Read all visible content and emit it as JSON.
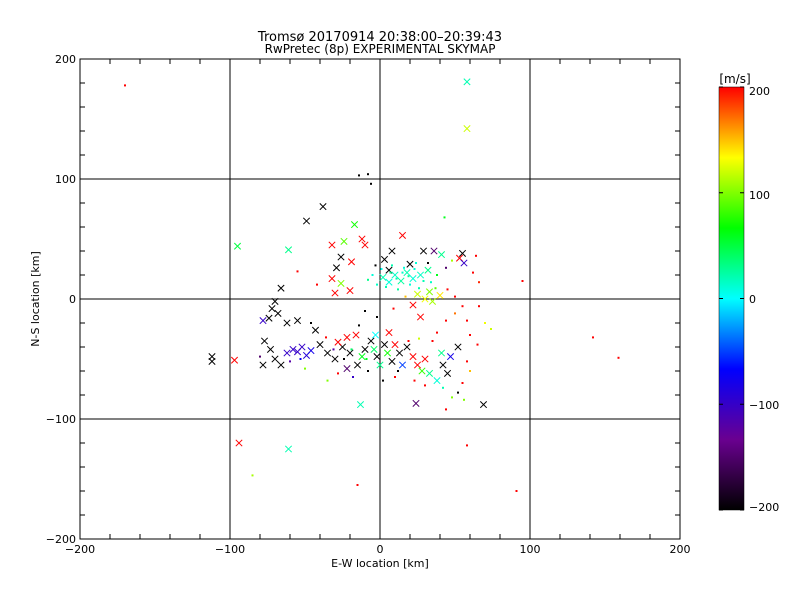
{
  "chart_data": {
    "type": "scatter",
    "title": "Tromsø 20170914 20:38:00–20:39:43",
    "subtitle": "RwPretec (8p) EXPERIMENTAL SKYMAP",
    "xlabel": "E-W location [km]",
    "ylabel": "N-S location [km]",
    "xlim": [
      -200,
      200
    ],
    "ylim": [
      -200,
      200
    ],
    "xticks": [
      "−200",
      "−100",
      "0",
      "100",
      "200"
    ],
    "yticks": [
      "−200",
      "−100",
      "0",
      "100",
      "200"
    ],
    "grid": true,
    "colorbar": {
      "label": "[m/s]",
      "range": [
        -200,
        200
      ],
      "ticks": [
        "−200",
        "−100",
        "0",
        "100",
        "200"
      ],
      "colormap": [
        "#000000",
        "#6a0090",
        "#0000ff",
        "#00ffff",
        "#00ff00",
        "#ffff00",
        "#ff0000"
      ]
    },
    "points": [
      {
        "x": -170,
        "y": 178,
        "v": 200,
        "m": "dot"
      },
      {
        "x": 58,
        "y": 181,
        "v": 20,
        "m": "x"
      },
      {
        "x": 58,
        "y": 142,
        "v": 120,
        "m": "x"
      },
      {
        "x": -14,
        "y": 103,
        "v": -200,
        "m": "dot"
      },
      {
        "x": -8,
        "y": 104,
        "v": -200,
        "m": "dot"
      },
      {
        "x": -6,
        "y": 96,
        "v": -200,
        "m": "dot"
      },
      {
        "x": -38,
        "y": 77,
        "v": -200,
        "m": "x"
      },
      {
        "x": -49,
        "y": 65,
        "v": -200,
        "m": "x"
      },
      {
        "x": 43,
        "y": 68,
        "v": 60,
        "m": "dot"
      },
      {
        "x": -17,
        "y": 62,
        "v": 70,
        "m": "x"
      },
      {
        "x": -95,
        "y": 44,
        "v": 50,
        "m": "x"
      },
      {
        "x": -61,
        "y": 41,
        "v": 30,
        "m": "x"
      },
      {
        "x": -32,
        "y": 45,
        "v": 200,
        "m": "x"
      },
      {
        "x": -24,
        "y": 48,
        "v": 90,
        "m": "x"
      },
      {
        "x": -12,
        "y": 50,
        "v": 200,
        "m": "x"
      },
      {
        "x": -10,
        "y": 45,
        "v": 200,
        "m": "x"
      },
      {
        "x": 15,
        "y": 53,
        "v": 200,
        "m": "x"
      },
      {
        "x": 8,
        "y": 40,
        "v": -200,
        "m": "x"
      },
      {
        "x": 29,
        "y": 40,
        "v": -200,
        "m": "x"
      },
      {
        "x": 36,
        "y": 40,
        "v": -150,
        "m": "x"
      },
      {
        "x": 41,
        "y": 37,
        "v": 30,
        "m": "x"
      },
      {
        "x": 55,
        "y": 38,
        "v": -200,
        "m": "x"
      },
      {
        "x": 53,
        "y": 34,
        "v": 200,
        "m": "x"
      },
      {
        "x": 56,
        "y": 30,
        "v": -100,
        "m": "x"
      },
      {
        "x": 20,
        "y": 29,
        "v": -200,
        "m": "x"
      },
      {
        "x": 6,
        "y": 24,
        "v": -200,
        "m": "x"
      },
      {
        "x": 3,
        "y": 33,
        "v": -200,
        "m": "x"
      },
      {
        "x": -26,
        "y": 35,
        "v": -200,
        "m": "x"
      },
      {
        "x": -19,
        "y": 31,
        "v": 200,
        "m": "x"
      },
      {
        "x": -29,
        "y": 26,
        "v": -200,
        "m": "x"
      },
      {
        "x": -32,
        "y": 17,
        "v": 200,
        "m": "x"
      },
      {
        "x": -26,
        "y": 13,
        "v": 100,
        "m": "x"
      },
      {
        "x": -30,
        "y": 5,
        "v": 200,
        "m": "x"
      },
      {
        "x": -20,
        "y": 7,
        "v": 200,
        "m": "x"
      },
      {
        "x": 2,
        "y": 18,
        "v": 20,
        "m": "x"
      },
      {
        "x": 6,
        "y": 14,
        "v": 10,
        "m": "x"
      },
      {
        "x": 10,
        "y": 20,
        "v": 15,
        "m": "x"
      },
      {
        "x": 14,
        "y": 15,
        "v": 25,
        "m": "x"
      },
      {
        "x": 18,
        "y": 22,
        "v": 20,
        "m": "x"
      },
      {
        "x": 22,
        "y": 17,
        "v": 10,
        "m": "x"
      },
      {
        "x": 27,
        "y": 20,
        "v": 15,
        "m": "x"
      },
      {
        "x": 32,
        "y": 24,
        "v": 30,
        "m": "x"
      },
      {
        "x": -5,
        "y": 20,
        "v": 10,
        "m": "dot"
      },
      {
        "x": -2,
        "y": 12,
        "v": 15,
        "m": "dot"
      },
      {
        "x": 4,
        "y": 10,
        "v": 20,
        "m": "dot"
      },
      {
        "x": 12,
        "y": 8,
        "v": 25,
        "m": "dot"
      },
      {
        "x": 20,
        "y": 12,
        "v": 10,
        "m": "dot"
      },
      {
        "x": 26,
        "y": 9,
        "v": 20,
        "m": "dot"
      },
      {
        "x": 34,
        "y": 14,
        "v": 15,
        "m": "dot"
      },
      {
        "x": -8,
        "y": 16,
        "v": 30,
        "m": "dot"
      },
      {
        "x": 16,
        "y": 26,
        "v": 10,
        "m": "dot"
      },
      {
        "x": 8,
        "y": 28,
        "v": 20,
        "m": "dot"
      },
      {
        "x": 24,
        "y": 30,
        "v": 10,
        "m": "dot"
      },
      {
        "x": 38,
        "y": 20,
        "v": 60,
        "m": "dot"
      },
      {
        "x": 25,
        "y": 4,
        "v": 120,
        "m": "x"
      },
      {
        "x": 30,
        "y": 0,
        "v": 130,
        "m": "x"
      },
      {
        "x": 35,
        "y": -2,
        "v": 110,
        "m": "x"
      },
      {
        "x": 40,
        "y": 3,
        "v": 140,
        "m": "x"
      },
      {
        "x": 33,
        "y": 6,
        "v": 100,
        "m": "x"
      },
      {
        "x": 22,
        "y": -5,
        "v": 200,
        "m": "x"
      },
      {
        "x": 27,
        "y": -15,
        "v": 200,
        "m": "x"
      },
      {
        "x": 45,
        "y": 8,
        "v": 200,
        "m": "dot"
      },
      {
        "x": 50,
        "y": 2,
        "v": 200,
        "m": "dot"
      },
      {
        "x": 55,
        "y": -6,
        "v": 200,
        "m": "dot"
      },
      {
        "x": 62,
        "y": 22,
        "v": 200,
        "m": "dot"
      },
      {
        "x": 66,
        "y": 14,
        "v": 190,
        "m": "dot"
      },
      {
        "x": 64,
        "y": 36,
        "v": 200,
        "m": "dot"
      },
      {
        "x": 70,
        "y": -20,
        "v": 130,
        "m": "dot"
      },
      {
        "x": 74,
        "y": -25,
        "v": 120,
        "m": "dot"
      },
      {
        "x": 60,
        "y": -30,
        "v": 200,
        "m": "dot"
      },
      {
        "x": 65,
        "y": -38,
        "v": 200,
        "m": "dot"
      },
      {
        "x": 95,
        "y": 15,
        "v": 200,
        "m": "dot"
      },
      {
        "x": 142,
        "y": -32,
        "v": 200,
        "m": "dot"
      },
      {
        "x": 159,
        "y": -49,
        "v": 200,
        "m": "dot"
      },
      {
        "x": -55,
        "y": 23,
        "v": 200,
        "m": "dot"
      },
      {
        "x": -42,
        "y": 12,
        "v": 200,
        "m": "dot"
      },
      {
        "x": -66,
        "y": 9,
        "v": -200,
        "m": "x"
      },
      {
        "x": -70,
        "y": -2,
        "v": -200,
        "m": "x"
      },
      {
        "x": -72,
        "y": -8,
        "v": -200,
        "m": "x"
      },
      {
        "x": -68,
        "y": -12,
        "v": -200,
        "m": "x"
      },
      {
        "x": -74,
        "y": -16,
        "v": -200,
        "m": "x"
      },
      {
        "x": -78,
        "y": -18,
        "v": -100,
        "m": "x"
      },
      {
        "x": -62,
        "y": -20,
        "v": -200,
        "m": "x"
      },
      {
        "x": -55,
        "y": -18,
        "v": -200,
        "m": "x"
      },
      {
        "x": -43,
        "y": -26,
        "v": -200,
        "m": "x"
      },
      {
        "x": -46,
        "y": -20,
        "v": -200,
        "m": "dot"
      },
      {
        "x": -36,
        "y": -32,
        "v": 200,
        "m": "dot"
      },
      {
        "x": -112,
        "y": -48,
        "v": -200,
        "m": "x"
      },
      {
        "x": -112,
        "y": -52,
        "v": -200,
        "m": "x"
      },
      {
        "x": -97,
        "y": -51,
        "v": 200,
        "m": "x"
      },
      {
        "x": -77,
        "y": -35,
        "v": -200,
        "m": "x"
      },
      {
        "x": -73,
        "y": -42,
        "v": -200,
        "m": "x"
      },
      {
        "x": -70,
        "y": -50,
        "v": -200,
        "m": "x"
      },
      {
        "x": -66,
        "y": -55,
        "v": -200,
        "m": "x"
      },
      {
        "x": -78,
        "y": -55,
        "v": -200,
        "m": "x"
      },
      {
        "x": -80,
        "y": -48,
        "v": -150,
        "m": "dot"
      },
      {
        "x": -62,
        "y": -45,
        "v": -100,
        "m": "x"
      },
      {
        "x": -58,
        "y": -42,
        "v": -100,
        "m": "x"
      },
      {
        "x": -55,
        "y": -44,
        "v": -100,
        "m": "x"
      },
      {
        "x": -52,
        "y": -40,
        "v": -100,
        "m": "x"
      },
      {
        "x": -49,
        "y": -47,
        "v": -90,
        "m": "x"
      },
      {
        "x": -46,
        "y": -43,
        "v": -80,
        "m": "x"
      },
      {
        "x": -53,
        "y": -50,
        "v": -70,
        "m": "dot"
      },
      {
        "x": -60,
        "y": -52,
        "v": -120,
        "m": "dot"
      },
      {
        "x": -50,
        "y": -58,
        "v": 100,
        "m": "dot"
      },
      {
        "x": -40,
        "y": -38,
        "v": -200,
        "m": "x"
      },
      {
        "x": -35,
        "y": -45,
        "v": -200,
        "m": "x"
      },
      {
        "x": -30,
        "y": -50,
        "v": -200,
        "m": "x"
      },
      {
        "x": -25,
        "y": -40,
        "v": -200,
        "m": "x"
      },
      {
        "x": -20,
        "y": -45,
        "v": -200,
        "m": "x"
      },
      {
        "x": -15,
        "y": -55,
        "v": -200,
        "m": "x"
      },
      {
        "x": -10,
        "y": -42,
        "v": -200,
        "m": "x"
      },
      {
        "x": -6,
        "y": -35,
        "v": -200,
        "m": "x"
      },
      {
        "x": -2,
        "y": -48,
        "v": -200,
        "m": "x"
      },
      {
        "x": 3,
        "y": -38,
        "v": -200,
        "m": "x"
      },
      {
        "x": 8,
        "y": -52,
        "v": -200,
        "m": "x"
      },
      {
        "x": 13,
        "y": -45,
        "v": -200,
        "m": "x"
      },
      {
        "x": 18,
        "y": -40,
        "v": -200,
        "m": "x"
      },
      {
        "x": -28,
        "y": -36,
        "v": 200,
        "m": "x"
      },
      {
        "x": -22,
        "y": -32,
        "v": 200,
        "m": "x"
      },
      {
        "x": -16,
        "y": -30,
        "v": 200,
        "m": "x"
      },
      {
        "x": -12,
        "y": -48,
        "v": 60,
        "m": "x"
      },
      {
        "x": -4,
        "y": -42,
        "v": 40,
        "m": "x"
      },
      {
        "x": 0,
        "y": -55,
        "v": 30,
        "m": "x"
      },
      {
        "x": 5,
        "y": -45,
        "v": 70,
        "m": "x"
      },
      {
        "x": 10,
        "y": -38,
        "v": 200,
        "m": "x"
      },
      {
        "x": 15,
        "y": -55,
        "v": -50,
        "m": "x"
      },
      {
        "x": -8,
        "y": -60,
        "v": -200,
        "m": "dot"
      },
      {
        "x": -18,
        "y": -65,
        "v": -100,
        "m": "dot"
      },
      {
        "x": -28,
        "y": -62,
        "v": 200,
        "m": "dot"
      },
      {
        "x": -35,
        "y": -68,
        "v": 100,
        "m": "dot"
      },
      {
        "x": 2,
        "y": -68,
        "v": -200,
        "m": "dot"
      },
      {
        "x": 10,
        "y": -65,
        "v": 200,
        "m": "dot"
      },
      {
        "x": -22,
        "y": -58,
        "v": -150,
        "m": "x"
      },
      {
        "x": -3,
        "y": -30,
        "v": 0,
        "m": "x"
      },
      {
        "x": 6,
        "y": -28,
        "v": 200,
        "m": "x"
      },
      {
        "x": 22,
        "y": -48,
        "v": 200,
        "m": "x"
      },
      {
        "x": 25,
        "y": -55,
        "v": 200,
        "m": "x"
      },
      {
        "x": 30,
        "y": -50,
        "v": 200,
        "m": "x"
      },
      {
        "x": 28,
        "y": -60,
        "v": 80,
        "m": "x"
      },
      {
        "x": 33,
        "y": -62,
        "v": 30,
        "m": "x"
      },
      {
        "x": 38,
        "y": -68,
        "v": 10,
        "m": "x"
      },
      {
        "x": 42,
        "y": -55,
        "v": -200,
        "m": "x"
      },
      {
        "x": 45,
        "y": -62,
        "v": -200,
        "m": "x"
      },
      {
        "x": 47,
        "y": -48,
        "v": -80,
        "m": "x"
      },
      {
        "x": 41,
        "y": -45,
        "v": 30,
        "m": "x"
      },
      {
        "x": 52,
        "y": -40,
        "v": -200,
        "m": "x"
      },
      {
        "x": 35,
        "y": -35,
        "v": 200,
        "m": "dot"
      },
      {
        "x": 58,
        "y": -52,
        "v": 200,
        "m": "dot"
      },
      {
        "x": 60,
        "y": -60,
        "v": 150,
        "m": "dot"
      },
      {
        "x": 55,
        "y": -70,
        "v": 200,
        "m": "dot"
      },
      {
        "x": 52,
        "y": -78,
        "v": -200,
        "m": "dot"
      },
      {
        "x": 48,
        "y": -82,
        "v": 100,
        "m": "dot"
      },
      {
        "x": 42,
        "y": -74,
        "v": 20,
        "m": "dot"
      },
      {
        "x": 30,
        "y": -72,
        "v": 200,
        "m": "dot"
      },
      {
        "x": 23,
        "y": -68,
        "v": 200,
        "m": "dot"
      },
      {
        "x": 69,
        "y": -88,
        "v": -200,
        "m": "x"
      },
      {
        "x": 24,
        "y": -87,
        "v": -150,
        "m": "x"
      },
      {
        "x": 44,
        "y": -92,
        "v": 200,
        "m": "dot"
      },
      {
        "x": 56,
        "y": -84,
        "v": 100,
        "m": "dot"
      },
      {
        "x": -13,
        "y": -88,
        "v": 20,
        "m": "x"
      },
      {
        "x": -94,
        "y": -120,
        "v": 200,
        "m": "x"
      },
      {
        "x": -61,
        "y": -125,
        "v": 20,
        "m": "x"
      },
      {
        "x": -85,
        "y": -147,
        "v": 110,
        "m": "dot"
      },
      {
        "x": -15,
        "y": -155,
        "v": 200,
        "m": "dot"
      },
      {
        "x": 58,
        "y": -122,
        "v": 200,
        "m": "dot"
      },
      {
        "x": 91,
        "y": -160,
        "v": 200,
        "m": "dot"
      },
      {
        "x": 15,
        "y": 22,
        "v": 15,
        "m": "dot"
      },
      {
        "x": 11,
        "y": 17,
        "v": 20,
        "m": "dot"
      },
      {
        "x": 19,
        "y": 19,
        "v": 25,
        "m": "dot"
      },
      {
        "x": 23,
        "y": 25,
        "v": 10,
        "m": "dot"
      },
      {
        "x": 7,
        "y": 22,
        "v": 30,
        "m": "dot"
      },
      {
        "x": 29,
        "y": 15,
        "v": 20,
        "m": "dot"
      },
      {
        "x": 1,
        "y": 25,
        "v": 5,
        "m": "dot"
      },
      {
        "x": -3,
        "y": 28,
        "v": -200,
        "m": "dot"
      },
      {
        "x": 32,
        "y": 30,
        "v": -200,
        "m": "dot"
      },
      {
        "x": 44,
        "y": 26,
        "v": -150,
        "m": "dot"
      },
      {
        "x": 48,
        "y": 32,
        "v": 110,
        "m": "dot"
      },
      {
        "x": 37,
        "y": 9,
        "v": 90,
        "m": "dot"
      },
      {
        "x": 17,
        "y": 2,
        "v": 150,
        "m": "dot"
      },
      {
        "x": 9,
        "y": -8,
        "v": 200,
        "m": "dot"
      },
      {
        "x": -10,
        "y": -10,
        "v": -200,
        "m": "dot"
      },
      {
        "x": -2,
        "y": -15,
        "v": -200,
        "m": "dot"
      },
      {
        "x": -14,
        "y": -22,
        "v": -200,
        "m": "dot"
      },
      {
        "x": -19,
        "y": -42,
        "v": 40,
        "m": "dot"
      },
      {
        "x": -9,
        "y": -50,
        "v": 60,
        "m": "dot"
      },
      {
        "x": -24,
        "y": -50,
        "v": -200,
        "m": "dot"
      },
      {
        "x": -31,
        "y": -42,
        "v": -120,
        "m": "dot"
      },
      {
        "x": 12,
        "y": -60,
        "v": -200,
        "m": "dot"
      },
      {
        "x": 19,
        "y": -35,
        "v": 200,
        "m": "dot"
      },
      {
        "x": 26,
        "y": -33,
        "v": 120,
        "m": "dot"
      },
      {
        "x": 38,
        "y": -28,
        "v": 200,
        "m": "dot"
      },
      {
        "x": 44,
        "y": -18,
        "v": 200,
        "m": "dot"
      },
      {
        "x": 50,
        "y": -12,
        "v": 170,
        "m": "dot"
      },
      {
        "x": 58,
        "y": -18,
        "v": 200,
        "m": "dot"
      },
      {
        "x": 66,
        "y": -6,
        "v": 200,
        "m": "dot"
      }
    ]
  }
}
